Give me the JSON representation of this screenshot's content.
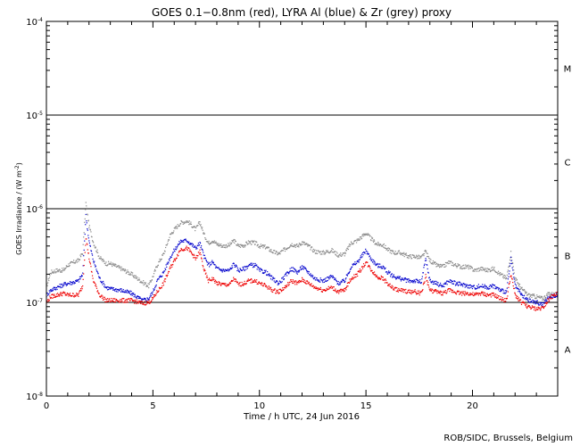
{
  "chart_data": {
    "type": "scatter",
    "title": "GOES 0.1−0.8nm (red), LYRA Al (blue) & Zr (grey) proxy",
    "xlabel": "Time / h UTC, 24 Jun 2016",
    "ylabel": {
      "main": "GOES Irradiance / (W m",
      "sup": "-2",
      "close": ")"
    },
    "x_range": [
      0,
      24
    ],
    "y_range": [
      1e-08,
      0.0001
    ],
    "y_scale": "log",
    "x_ticks": [
      0,
      5,
      10,
      15,
      20
    ],
    "x_tick_labels": [
      "0",
      "5",
      "10",
      "15",
      "20"
    ],
    "y_ticks": [
      {
        "value": 1e-08,
        "base": "10",
        "exp": "-8"
      },
      {
        "value": 1e-07,
        "base": "10",
        "exp": "-7"
      },
      {
        "value": 1e-06,
        "base": "10",
        "exp": "-6"
      },
      {
        "value": 1e-05,
        "base": "10",
        "exp": "-5"
      },
      {
        "value": 0.0001,
        "base": "10",
        "exp": "-4"
      }
    ],
    "reference_lines": [
      1e-07,
      1e-06,
      1e-05
    ],
    "flare_classes": [
      {
        "label": "A",
        "y": 3.16e-08
      },
      {
        "label": "B",
        "y": 3.16e-07
      },
      {
        "label": "C",
        "y": 3.16e-06
      },
      {
        "label": "M",
        "y": 3.16e-05
      }
    ],
    "series": [
      {
        "color": "#888888",
        "points": [
          [
            0,
            1.45e-07
          ],
          [
            0.2,
            2.1e-07
          ],
          [
            0.5,
            2.2e-07
          ],
          [
            0.8,
            2.2e-07
          ],
          [
            1.0,
            2.5e-07
          ],
          [
            1.3,
            2.7e-07
          ],
          [
            1.5,
            2.8e-07
          ],
          [
            1.7,
            3.4e-07
          ],
          [
            1.85,
            1.15e-06
          ],
          [
            2.0,
            6.6e-07
          ],
          [
            2.2,
            4.4e-07
          ],
          [
            2.5,
            3e-07
          ],
          [
            2.8,
            2.6e-07
          ],
          [
            3.0,
            2.6e-07
          ],
          [
            3.5,
            2.3e-07
          ],
          [
            4.0,
            2e-07
          ],
          [
            4.5,
            1.65e-07
          ],
          [
            4.8,
            1.5e-07
          ],
          [
            5.0,
            1.9e-07
          ],
          [
            5.2,
            2.5e-07
          ],
          [
            5.5,
            3.3e-07
          ],
          [
            5.8,
            5.2e-07
          ],
          [
            6.0,
            6e-07
          ],
          [
            6.3,
            7.1e-07
          ],
          [
            6.6,
            7.4e-07
          ],
          [
            6.8,
            6.8e-07
          ],
          [
            7.0,
            6e-07
          ],
          [
            7.2,
            7.2e-07
          ],
          [
            7.4,
            5.3e-07
          ],
          [
            7.6,
            4.3e-07
          ],
          [
            7.8,
            4.6e-07
          ],
          [
            8.0,
            4.2e-07
          ],
          [
            8.3,
            4e-07
          ],
          [
            8.6,
            4.1e-07
          ],
          [
            8.8,
            4.6e-07
          ],
          [
            9.0,
            4e-07
          ],
          [
            9.3,
            4.1e-07
          ],
          [
            9.5,
            4.4e-07
          ],
          [
            9.8,
            4.3e-07
          ],
          [
            10.0,
            4e-07
          ],
          [
            10.3,
            3.9e-07
          ],
          [
            10.6,
            3.5e-07
          ],
          [
            10.9,
            3.3e-07
          ],
          [
            11.2,
            3.7e-07
          ],
          [
            11.5,
            4.2e-07
          ],
          [
            11.8,
            4e-07
          ],
          [
            12.0,
            4.4e-07
          ],
          [
            12.3,
            4e-07
          ],
          [
            12.6,
            3.5e-07
          ],
          [
            13.0,
            3.4e-07
          ],
          [
            13.4,
            3.6e-07
          ],
          [
            13.7,
            3.2e-07
          ],
          [
            14.0,
            3.3e-07
          ],
          [
            14.3,
            4.3e-07
          ],
          [
            14.6,
            4.6e-07
          ],
          [
            15.0,
            5.5e-07
          ],
          [
            15.2,
            4.9e-07
          ],
          [
            15.5,
            4.2e-07
          ],
          [
            15.8,
            4.1e-07
          ],
          [
            16.0,
            3.7e-07
          ],
          [
            16.3,
            3.4e-07
          ],
          [
            16.6,
            3.4e-07
          ],
          [
            17.0,
            3.1e-07
          ],
          [
            17.3,
            3.1e-07
          ],
          [
            17.6,
            3e-07
          ],
          [
            17.8,
            3.5e-07
          ],
          [
            18.0,
            2.8e-07
          ],
          [
            18.3,
            2.5e-07
          ],
          [
            18.6,
            2.4e-07
          ],
          [
            18.9,
            2.7e-07
          ],
          [
            19.2,
            2.5e-07
          ],
          [
            19.5,
            2.4e-07
          ],
          [
            19.8,
            2.4e-07
          ],
          [
            20.1,
            2.2e-07
          ],
          [
            20.4,
            2.3e-07
          ],
          [
            20.7,
            2.2e-07
          ],
          [
            21.0,
            2.3e-07
          ],
          [
            21.3,
            2e-07
          ],
          [
            21.6,
            1.8e-07
          ],
          [
            21.8,
            3.4e-07
          ],
          [
            22.0,
            1.8e-07
          ],
          [
            22.3,
            1.4e-07
          ],
          [
            22.6,
            1.2e-07
          ],
          [
            23.0,
            1.15e-07
          ],
          [
            23.3,
            1.1e-07
          ],
          [
            23.6,
            1.25e-07
          ],
          [
            24.0,
            1.2e-07
          ]
        ]
      },
      {
        "color": "#0000cc",
        "points": [
          [
            0,
            1.2e-07
          ],
          [
            0.2,
            1.35e-07
          ],
          [
            0.5,
            1.45e-07
          ],
          [
            0.8,
            1.55e-07
          ],
          [
            1.0,
            1.6e-07
          ],
          [
            1.3,
            1.65e-07
          ],
          [
            1.5,
            1.7e-07
          ],
          [
            1.7,
            2e-07
          ],
          [
            1.85,
            8.4e-07
          ],
          [
            2.0,
            4.5e-07
          ],
          [
            2.2,
            2.8e-07
          ],
          [
            2.5,
            1.8e-07
          ],
          [
            2.8,
            1.45e-07
          ],
          [
            3.0,
            1.4e-07
          ],
          [
            3.5,
            1.35e-07
          ],
          [
            4.0,
            1.25e-07
          ],
          [
            4.5,
            1.05e-07
          ],
          [
            4.8,
            1.1e-07
          ],
          [
            5.0,
            1.3e-07
          ],
          [
            5.2,
            1.7e-07
          ],
          [
            5.5,
            2.1e-07
          ],
          [
            5.8,
            3e-07
          ],
          [
            6.0,
            3.6e-07
          ],
          [
            6.3,
            4.5e-07
          ],
          [
            6.6,
            4.6e-07
          ],
          [
            6.8,
            4.2e-07
          ],
          [
            7.0,
            3.8e-07
          ],
          [
            7.2,
            4.3e-07
          ],
          [
            7.4,
            3.1e-07
          ],
          [
            7.6,
            2.5e-07
          ],
          [
            7.8,
            2.7e-07
          ],
          [
            8.0,
            2.3e-07
          ],
          [
            8.3,
            2.2e-07
          ],
          [
            8.6,
            2.2e-07
          ],
          [
            8.8,
            2.6e-07
          ],
          [
            9.0,
            2.2e-07
          ],
          [
            9.3,
            2.3e-07
          ],
          [
            9.5,
            2.5e-07
          ],
          [
            9.8,
            2.5e-07
          ],
          [
            10.0,
            2.2e-07
          ],
          [
            10.3,
            2.1e-07
          ],
          [
            10.6,
            1.8e-07
          ],
          [
            10.9,
            1.6e-07
          ],
          [
            11.2,
            1.9e-07
          ],
          [
            11.5,
            2.3e-07
          ],
          [
            11.8,
            2.1e-07
          ],
          [
            12.0,
            2.4e-07
          ],
          [
            12.3,
            2.1e-07
          ],
          [
            12.6,
            1.8e-07
          ],
          [
            13.0,
            1.7e-07
          ],
          [
            13.4,
            1.9e-07
          ],
          [
            13.7,
            1.6e-07
          ],
          [
            14.0,
            1.7e-07
          ],
          [
            14.3,
            2.4e-07
          ],
          [
            14.6,
            2.7e-07
          ],
          [
            15.0,
            3.6e-07
          ],
          [
            15.2,
            3e-07
          ],
          [
            15.5,
            2.5e-07
          ],
          [
            15.8,
            2.4e-07
          ],
          [
            16.0,
            2.1e-07
          ],
          [
            16.3,
            1.9e-07
          ],
          [
            16.6,
            1.8e-07
          ],
          [
            17.0,
            1.7e-07
          ],
          [
            17.3,
            1.7e-07
          ],
          [
            17.6,
            1.65e-07
          ],
          [
            17.8,
            2.9e-07
          ],
          [
            18.0,
            1.7e-07
          ],
          [
            18.3,
            1.6e-07
          ],
          [
            18.6,
            1.5e-07
          ],
          [
            18.9,
            1.7e-07
          ],
          [
            19.2,
            1.6e-07
          ],
          [
            19.5,
            1.55e-07
          ],
          [
            19.8,
            1.5e-07
          ],
          [
            20.1,
            1.45e-07
          ],
          [
            20.4,
            1.5e-07
          ],
          [
            20.7,
            1.45e-07
          ],
          [
            21.0,
            1.5e-07
          ],
          [
            21.3,
            1.35e-07
          ],
          [
            21.6,
            1.3e-07
          ],
          [
            21.8,
            2.9e-07
          ],
          [
            22.0,
            1.5e-07
          ],
          [
            22.3,
            1.2e-07
          ],
          [
            22.6,
            1.05e-07
          ],
          [
            23.0,
            1e-07
          ],
          [
            23.3,
            9.5e-08
          ],
          [
            23.6,
            1.15e-07
          ],
          [
            24.0,
            1.2e-07
          ]
        ]
      },
      {
        "color": "#ee0000",
        "points": [
          [
            0,
            1e-07
          ],
          [
            0.2,
            1.15e-07
          ],
          [
            0.5,
            1.2e-07
          ],
          [
            0.8,
            1.25e-07
          ],
          [
            1.0,
            1.2e-07
          ],
          [
            1.3,
            1.2e-07
          ],
          [
            1.5,
            1.2e-07
          ],
          [
            1.7,
            1.5e-07
          ],
          [
            1.85,
            5e-07
          ],
          [
            2.0,
            3e-07
          ],
          [
            2.2,
            1.7e-07
          ],
          [
            2.5,
            1.2e-07
          ],
          [
            2.8,
            1.05e-07
          ],
          [
            3.0,
            1.05e-07
          ],
          [
            3.5,
            1.05e-07
          ],
          [
            4.0,
            1.05e-07
          ],
          [
            4.5,
            9.8e-08
          ],
          [
            4.8,
            1e-07
          ],
          [
            5.0,
            1.1e-07
          ],
          [
            5.2,
            1.3e-07
          ],
          [
            5.5,
            1.6e-07
          ],
          [
            5.8,
            2.3e-07
          ],
          [
            6.0,
            2.8e-07
          ],
          [
            6.3,
            3.7e-07
          ],
          [
            6.6,
            3.8e-07
          ],
          [
            6.8,
            3.4e-07
          ],
          [
            7.0,
            2.9e-07
          ],
          [
            7.2,
            3.5e-07
          ],
          [
            7.4,
            2.2e-07
          ],
          [
            7.6,
            1.7e-07
          ],
          [
            7.8,
            1.8e-07
          ],
          [
            8.0,
            1.6e-07
          ],
          [
            8.3,
            1.55e-07
          ],
          [
            8.6,
            1.55e-07
          ],
          [
            8.8,
            1.8e-07
          ],
          [
            9.0,
            1.55e-07
          ],
          [
            9.3,
            1.6e-07
          ],
          [
            9.5,
            1.7e-07
          ],
          [
            9.8,
            1.7e-07
          ],
          [
            10.0,
            1.6e-07
          ],
          [
            10.3,
            1.5e-07
          ],
          [
            10.6,
            1.35e-07
          ],
          [
            10.9,
            1.3e-07
          ],
          [
            11.2,
            1.45e-07
          ],
          [
            11.5,
            1.7e-07
          ],
          [
            11.8,
            1.6e-07
          ],
          [
            12.0,
            1.75e-07
          ],
          [
            12.3,
            1.6e-07
          ],
          [
            12.6,
            1.45e-07
          ],
          [
            13.0,
            1.35e-07
          ],
          [
            13.4,
            1.45e-07
          ],
          [
            13.7,
            1.3e-07
          ],
          [
            14.0,
            1.35e-07
          ],
          [
            14.3,
            1.8e-07
          ],
          [
            14.6,
            2e-07
          ],
          [
            15.0,
            2.7e-07
          ],
          [
            15.2,
            2.3e-07
          ],
          [
            15.5,
            1.9e-07
          ],
          [
            15.8,
            1.8e-07
          ],
          [
            16.0,
            1.6e-07
          ],
          [
            16.3,
            1.4e-07
          ],
          [
            16.6,
            1.35e-07
          ],
          [
            17.0,
            1.3e-07
          ],
          [
            17.3,
            1.3e-07
          ],
          [
            17.6,
            1.25e-07
          ],
          [
            17.8,
            1.9e-07
          ],
          [
            18.0,
            1.35e-07
          ],
          [
            18.3,
            1.3e-07
          ],
          [
            18.6,
            1.25e-07
          ],
          [
            18.9,
            1.35e-07
          ],
          [
            19.2,
            1.3e-07
          ],
          [
            19.5,
            1.25e-07
          ],
          [
            19.8,
            1.25e-07
          ],
          [
            20.1,
            1.2e-07
          ],
          [
            20.4,
            1.25e-07
          ],
          [
            20.7,
            1.2e-07
          ],
          [
            21.0,
            1.2e-07
          ],
          [
            21.3,
            1.1e-07
          ],
          [
            21.6,
            1.05e-07
          ],
          [
            21.8,
            2e-07
          ],
          [
            22.0,
            1.2e-07
          ],
          [
            22.3,
            1e-07
          ],
          [
            22.6,
            9e-08
          ],
          [
            23.0,
            8.5e-08
          ],
          [
            23.3,
            8.8e-08
          ],
          [
            23.6,
            1.1e-07
          ],
          [
            24.0,
            1.25e-07
          ]
        ]
      }
    ]
  },
  "footer": {
    "credit": "ROB/SIDC, Brussels, Belgium"
  }
}
